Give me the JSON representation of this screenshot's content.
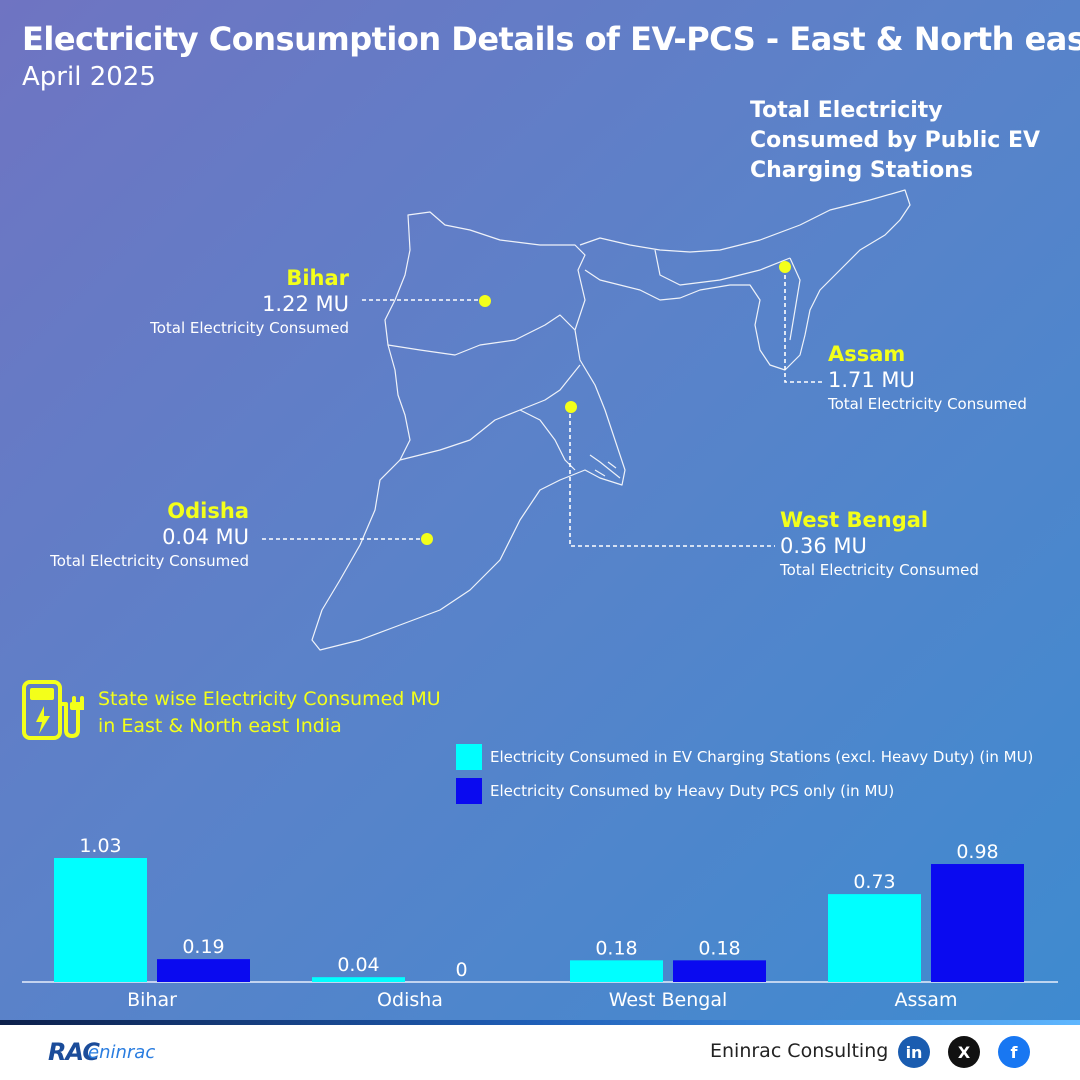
{
  "header": {
    "title": "Electricity Consumption Details of EV-PCS - East & North east",
    "subtitle": "April 2025"
  },
  "map": {
    "title": "Total Electricity Consumed by Public EV Charging Stations",
    "caption": "Total Electricity Consumed",
    "marker_color": "#f3ff1a",
    "states": {
      "bihar": {
        "name": "Bihar",
        "value": "1.22 MU"
      },
      "assam": {
        "name": "Assam",
        "value": "1.71 MU"
      },
      "odisha": {
        "name": "Odisha",
        "value": "0.04 MU"
      },
      "west_bengal": {
        "name": "West Bengal",
        "value": "0.36 MU"
      }
    }
  },
  "ev_section": {
    "icon": "ev-charger-icon",
    "title_line1": "State wise Electricity Consumed MU",
    "title_line2": "in East & North east India"
  },
  "chart_data": {
    "type": "bar",
    "categories": [
      "Bihar",
      "Odisha",
      "West Bengal",
      "Assam"
    ],
    "series": [
      {
        "name": "Electricity Consumed in EV Charging Stations (excl. Heavy Duty) (in MU)",
        "values": [
          1.03,
          0.04,
          0.18,
          0.73
        ],
        "color": "#00ffff"
      },
      {
        "name": "Electricity Consumed by Heavy Duty PCS only (in MU)",
        "values": [
          0.19,
          0,
          0.18,
          0.98
        ],
        "color": "#0a0af0"
      }
    ],
    "ylim": [
      0,
      1.03
    ],
    "grid": false,
    "legend": "top-right"
  },
  "footer": {
    "logo_text": "RAC",
    "logo_sub": "eninrac",
    "company": "Eninrac Consulting",
    "linkedin": "in",
    "x": "X",
    "facebook": "f"
  }
}
